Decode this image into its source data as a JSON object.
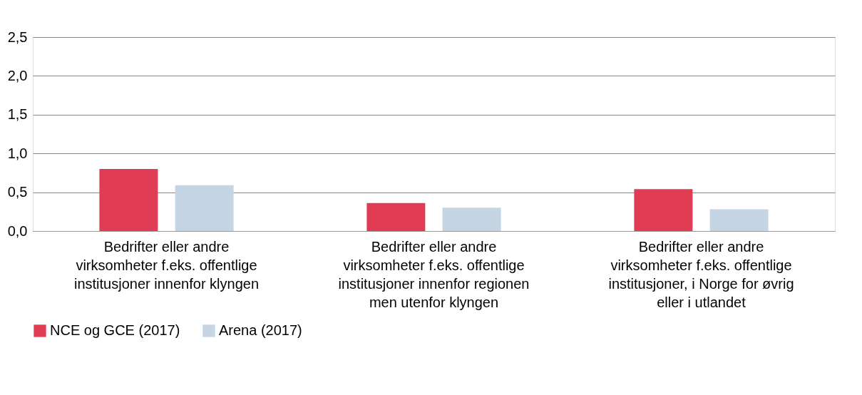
{
  "chart_data": {
    "type": "bar",
    "categories": [
      "Bedrifter eller andre virksomheter f.eks.  offentlige institusjoner innenfor klyngen",
      "Bedrifter eller andre virksomheter f.eks.  offentlige institusjoner innenfor regionen men utenfor klyngen",
      "Bedrifter eller andre virksomheter f.eks.  offentlige institusjoner, i Norge for øvrig eller i utlandet"
    ],
    "series": [
      {
        "name": "NCE og GCE (2017)",
        "color": "#e03c53",
        "values": [
          0.8,
          0.36,
          0.54
        ]
      },
      {
        "name": "Arena (2017)",
        "color": "#c5d5e3",
        "values": [
          0.59,
          0.3,
          0.28
        ]
      }
    ],
    "ylim": [
      0,
      2.5
    ],
    "yticks": [
      {
        "value": 0,
        "label": "0,0"
      },
      {
        "value": 0.5,
        "label": "0,5"
      },
      {
        "value": 1,
        "label": "1,0"
      },
      {
        "value": 1.5,
        "label": "1,5"
      },
      {
        "value": 2,
        "label": "2,0"
      },
      {
        "value": 2.5,
        "label": "2,5"
      }
    ],
    "grid": "y",
    "legend": "bottom"
  }
}
